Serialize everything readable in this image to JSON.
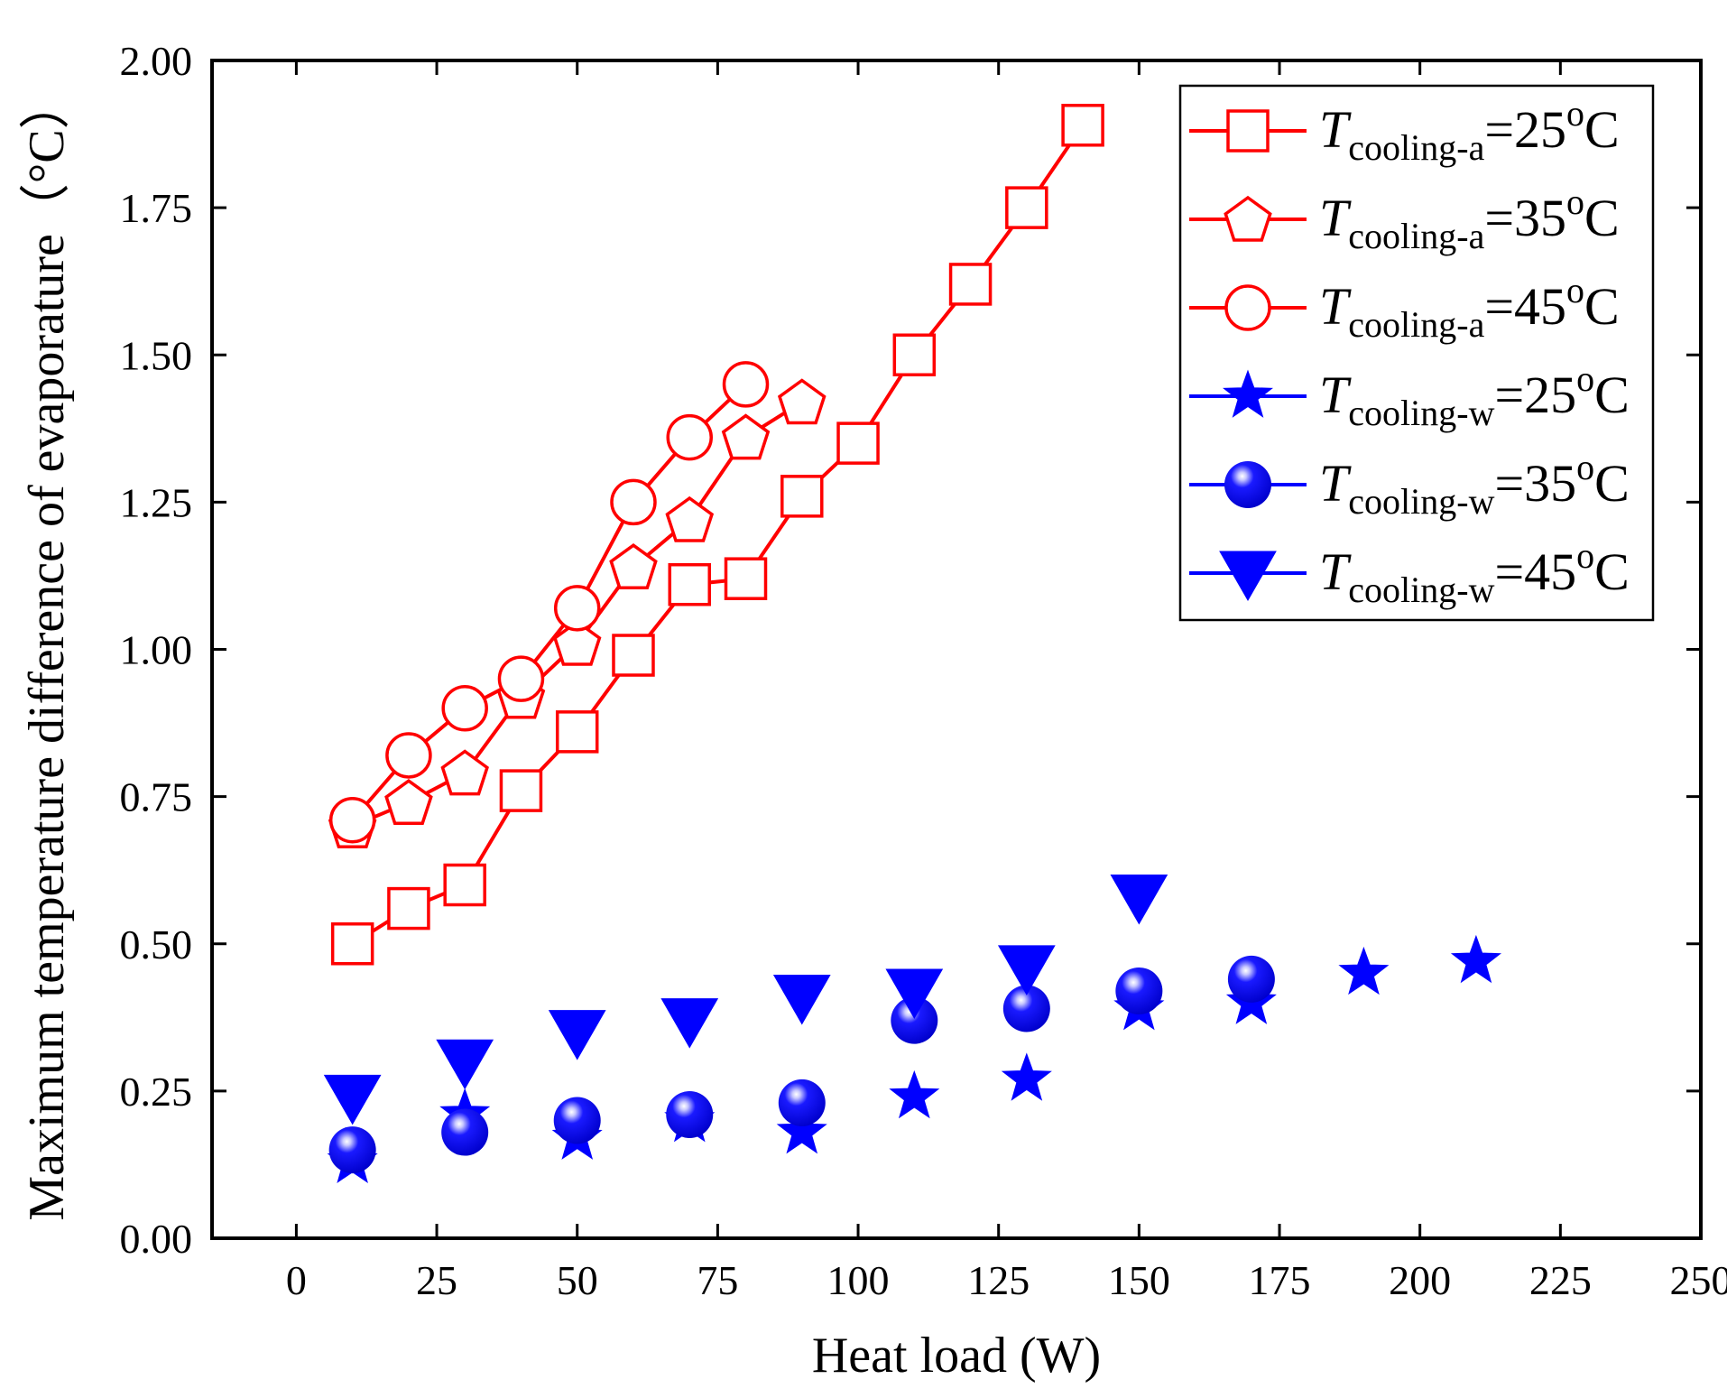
{
  "chart_data": {
    "type": "line",
    "xlabel": "Heat load (W)",
    "ylabel": "Maximum temperature difference of evaporature（°C）",
    "xlim": [
      -15,
      250
    ],
    "ylim": [
      0,
      2.0
    ],
    "x_ticks": [
      0,
      25,
      50,
      75,
      100,
      125,
      150,
      175,
      200,
      225,
      250
    ],
    "x_tick_labels": [
      "0",
      "25",
      "50",
      "75",
      "100",
      "125",
      "150",
      "175",
      "200",
      "225",
      "250"
    ],
    "y_ticks": [
      0,
      0.25,
      0.5,
      0.75,
      1.0,
      1.25,
      1.5,
      1.75,
      2.0
    ],
    "y_tick_labels": [
      "0.00",
      "0.25",
      "0.50",
      "0.75",
      "1.00",
      "1.25",
      "1.50",
      "1.75",
      "2.00"
    ],
    "grid": false,
    "legend_position": "top-right",
    "series": [
      {
        "name": "T cooling-a = 25°C",
        "legend_main": "T",
        "legend_sub": "cooling-a",
        "legend_value": "=25",
        "legend_sup": "o",
        "legend_unit": "C",
        "color": "#ff0000",
        "marker": "square",
        "filled": false,
        "line": true,
        "x": [
          10,
          20,
          30,
          40,
          50,
          60,
          70,
          80,
          90,
          100,
          110,
          120,
          130,
          140
        ],
        "y": [
          0.5,
          0.56,
          0.6,
          0.76,
          0.86,
          0.99,
          1.11,
          1.12,
          1.26,
          1.35,
          1.5,
          1.62,
          1.75,
          1.89
        ]
      },
      {
        "name": "T cooling-a = 35°C",
        "legend_main": "T",
        "legend_sub": "cooling-a",
        "legend_value": "=35",
        "legend_sup": "o",
        "legend_unit": "C",
        "color": "#ff0000",
        "marker": "pentagon",
        "filled": false,
        "line": true,
        "x": [
          10,
          20,
          30,
          40,
          50,
          60,
          70,
          80,
          90
        ],
        "y": [
          0.7,
          0.74,
          0.79,
          0.92,
          1.01,
          1.14,
          1.22,
          1.36,
          1.42
        ]
      },
      {
        "name": "T cooling-a = 45°C",
        "legend_main": "T",
        "legend_sub": "cooling-a",
        "legend_value": "=45",
        "legend_sup": "o",
        "legend_unit": "C",
        "color": "#ff0000",
        "marker": "circle",
        "filled": false,
        "line": true,
        "x": [
          10,
          20,
          30,
          40,
          50,
          60,
          70,
          80
        ],
        "y": [
          0.71,
          0.82,
          0.9,
          0.95,
          1.07,
          1.25,
          1.36,
          1.45
        ]
      },
      {
        "name": "T cooling-w = 25°C",
        "legend_main": "T",
        "legend_sub": "cooling-w",
        "legend_value": "=25",
        "legend_sup": "o",
        "legend_unit": "C",
        "color": "#0000ff",
        "marker": "star",
        "filled": true,
        "line": false,
        "x": [
          10,
          30,
          50,
          70,
          90,
          110,
          130,
          150,
          170,
          190,
          210
        ],
        "y": [
          0.13,
          0.21,
          0.17,
          0.2,
          0.18,
          0.24,
          0.27,
          0.39,
          0.4,
          0.45,
          0.47
        ]
      },
      {
        "name": "T cooling-w = 35°C",
        "legend_main": "T",
        "legend_sub": "cooling-w",
        "legend_value": "=35",
        "legend_sup": "o",
        "legend_unit": "C",
        "color": "#0000ff",
        "marker": "sphere",
        "filled": true,
        "line": false,
        "x": [
          10,
          30,
          50,
          70,
          90,
          110,
          130,
          150,
          170
        ],
        "y": [
          0.15,
          0.18,
          0.2,
          0.21,
          0.23,
          0.37,
          0.39,
          0.42,
          0.44
        ]
      },
      {
        "name": "T cooling-w = 45°C",
        "legend_main": "T",
        "legend_sub": "cooling-w",
        "legend_value": "=45",
        "legend_sup": "o",
        "legend_unit": "C",
        "color": "#0000ff",
        "marker": "triangle-down",
        "filled": true,
        "line": false,
        "x": [
          10,
          30,
          50,
          70,
          90,
          110,
          130,
          150
        ],
        "y": [
          0.24,
          0.3,
          0.35,
          0.37,
          0.41,
          0.42,
          0.46,
          0.58
        ]
      }
    ]
  }
}
